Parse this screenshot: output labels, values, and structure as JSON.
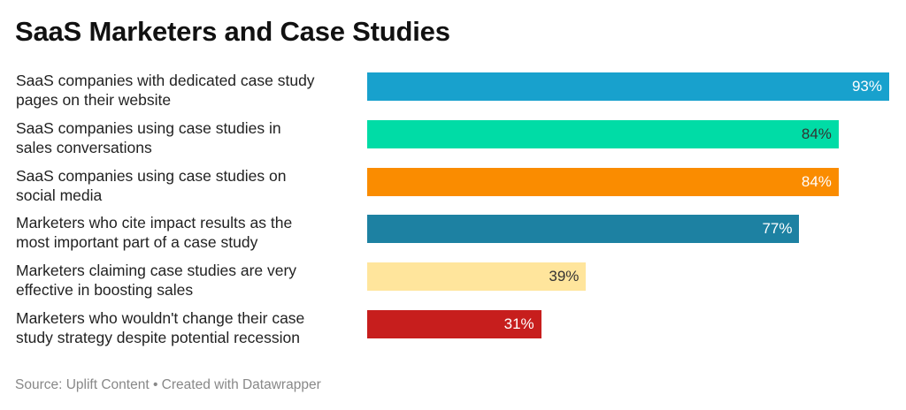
{
  "chart_data": {
    "type": "bar",
    "title": "SaaS Marketers and Case Studies",
    "categories": [
      "SaaS companies with dedicated case study pages on their website",
      "SaaS companies using case studies in sales conversations",
      "SaaS companies using case studies on social media",
      "Marketers who cite impact results as the most important part of a case study",
      "Marketers claiming case studies are very effective in boosting sales",
      "Marketers who wouldn't change their case study strategy despite potential recession"
    ],
    "label_lines": [
      [
        "SaaS companies with dedicated case study",
        "pages on their website"
      ],
      [
        "SaaS companies using case studies in",
        "sales conversations"
      ],
      [
        "SaaS companies using case studies on",
        "social media"
      ],
      [
        "Marketers who cite impact results as the",
        "most important part of a case study"
      ],
      [
        "Marketers claiming case studies are very",
        "effective in boosting sales"
      ],
      [
        "Marketers who wouldn't change their case",
        "study strategy despite potential recession"
      ]
    ],
    "values": [
      93,
      84,
      84,
      77,
      39,
      31
    ],
    "value_labels": [
      "93%",
      "84%",
      "84%",
      "77%",
      "39%",
      "31%"
    ],
    "colors": [
      "#18a1cd",
      "#00dca6",
      "#fa8c00",
      "#1d81a2",
      "#ffe59c",
      "#c71e1d"
    ],
    "label_colors": [
      "#ffffff",
      "#333333",
      "#ffffff",
      "#ffffff",
      "#333333",
      "#ffffff"
    ],
    "xlim": [
      0,
      93
    ],
    "grid": false,
    "source": "Source: Uplift Content • Created with Datawrapper"
  }
}
